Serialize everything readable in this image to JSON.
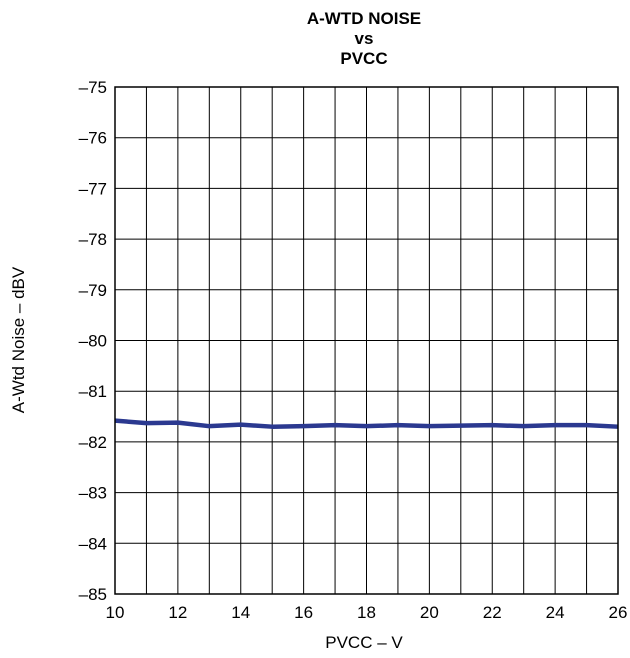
{
  "chart_data": {
    "type": "line",
    "title_lines": [
      "A-WTD NOISE",
      "vs",
      "PVCC"
    ],
    "xlabel": "PVCC – V",
    "ylabel": "A-Wtd Noise – dBV",
    "xlim": [
      10,
      26
    ],
    "ylim": [
      -85,
      -75
    ],
    "x_ticks": [
      "10",
      "12",
      "14",
      "16",
      "18",
      "20",
      "22",
      "24",
      "26"
    ],
    "y_ticks": [
      "–75",
      "–76",
      "–77",
      "–78",
      "–79",
      "–80",
      "–81",
      "–82",
      "–83",
      "–84",
      "–85"
    ],
    "grid": true,
    "line_color": "#2b3990",
    "series": [
      {
        "x": [
          10,
          11,
          12,
          13,
          14,
          15,
          16,
          17,
          18,
          19,
          20,
          21,
          22,
          23,
          24,
          25,
          26
        ],
        "values": [
          -81.58,
          -81.63,
          -81.62,
          -81.69,
          -81.66,
          -81.7,
          -81.69,
          -81.67,
          -81.69,
          -81.67,
          -81.69,
          -81.68,
          -81.67,
          -81.69,
          -81.67,
          -81.67,
          -81.7
        ]
      }
    ]
  }
}
